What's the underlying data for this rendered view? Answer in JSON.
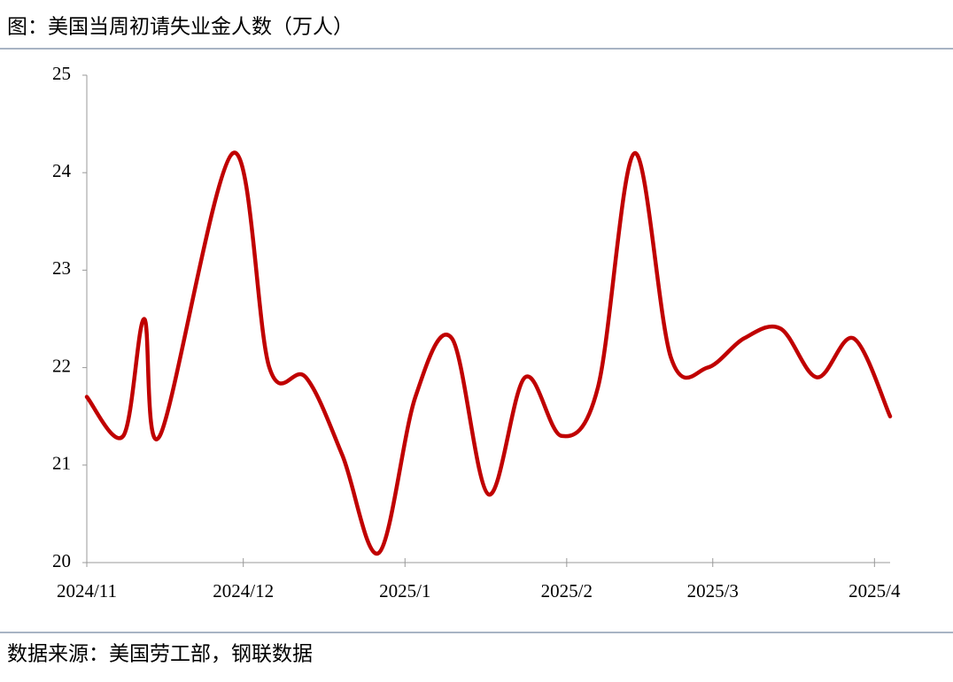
{
  "chart_data": {
    "type": "line",
    "title": "图：美国当周初请失业金人数（万人）",
    "source": "数据来源：美国劳工部，钢联数据",
    "x": [
      0,
      7,
      11,
      14,
      28,
      35,
      42,
      49,
      56,
      63,
      70,
      77,
      84,
      91,
      98,
      105,
      112,
      119,
      126,
      133,
      140,
      147,
      154
    ],
    "series": [
      {
        "color": "#c00000",
        "values": [
          21.7,
          21.3,
          22.5,
          21.3,
          24.2,
          22.0,
          21.9,
          21.1,
          20.1,
          21.7,
          22.3,
          20.7,
          21.9,
          21.3,
          21.8,
          24.2,
          22.1,
          22.0,
          22.3,
          22.4,
          21.9,
          22.3,
          21.5
        ]
      }
    ],
    "xlim": [
      0,
      154
    ],
    "xticks": [
      {
        "value": 0,
        "label": "2024/11"
      },
      {
        "value": 30,
        "label": "2024/12"
      },
      {
        "value": 61,
        "label": "2025/1"
      },
      {
        "value": 92,
        "label": "2025/2"
      },
      {
        "value": 120,
        "label": "2025/3"
      },
      {
        "value": 151,
        "label": "2025/4"
      }
    ],
    "ylim": [
      20,
      25
    ],
    "yticks": [
      20,
      21,
      22,
      23,
      24,
      25
    ],
    "grid": false
  }
}
